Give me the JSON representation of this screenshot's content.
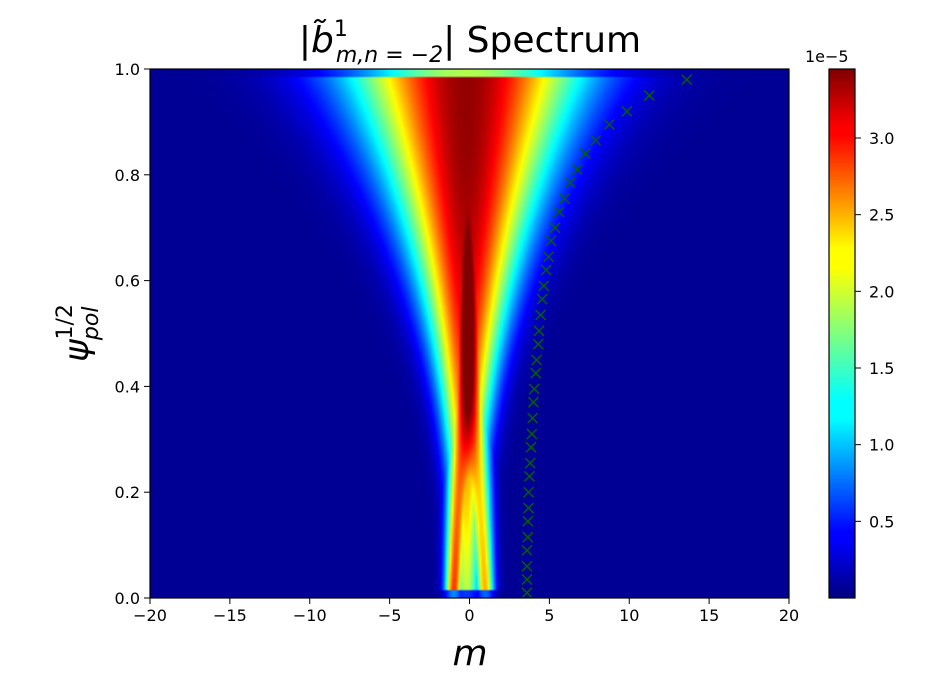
{
  "chart_data": {
    "type": "heatmap",
    "title": {
      "prefix": "|",
      "base": "b̃",
      "superscript": "1",
      "subscript": "m,n = −2",
      "suffix": "| Spectrum"
    },
    "xlabel": "m",
    "ylabel": {
      "base": "ψ",
      "superscript": "1/2",
      "subscript": "pol"
    },
    "xlim": [
      -20,
      20
    ],
    "ylim": [
      0.0,
      1.0
    ],
    "x_ticks": [
      -20,
      -15,
      -10,
      -5,
      0,
      5,
      10,
      15,
      20
    ],
    "x_tick_labels": [
      "−20",
      "−15",
      "−10",
      "−5",
      "0",
      "5",
      "10",
      "15",
      "20"
    ],
    "y_ticks": [
      0.0,
      0.2,
      0.4,
      0.6,
      0.8,
      1.0
    ],
    "y_tick_labels": [
      "0.0",
      "0.2",
      "0.4",
      "0.6",
      "0.8",
      "1.0"
    ],
    "colormap": "jet",
    "colorbar": {
      "min": 0.0,
      "max": 3.45e-05,
      "ticks": [
        5e-06,
        1e-05,
        1.5e-05,
        2e-05,
        2.5e-05,
        3e-05
      ],
      "tick_labels": [
        "0.5",
        "1.0",
        "1.5",
        "2.0",
        "2.5",
        "3.0"
      ],
      "offset_label": "1e−5"
    },
    "heatmap_features": {
      "peaks": [
        {
          "m": -1.0,
          "psi": 0.05,
          "value": 3.2e-05
        },
        {
          "m": 1.0,
          "psi": 0.05,
          "value": 2.5e-05
        },
        {
          "m": -0.5,
          "psi": 0.9,
          "value": 3.45e-05
        }
      ]
    },
    "series": [
      {
        "name": "",
        "marker": "x",
        "color": "#006400",
        "points": [
          [
            3.6,
            0.01
          ],
          [
            3.6,
            0.035
          ],
          [
            3.6,
            0.06
          ],
          [
            3.6,
            0.09
          ],
          [
            3.65,
            0.115
          ],
          [
            3.65,
            0.145
          ],
          [
            3.7,
            0.17
          ],
          [
            3.7,
            0.2
          ],
          [
            3.75,
            0.23
          ],
          [
            3.8,
            0.255
          ],
          [
            3.85,
            0.285
          ],
          [
            3.9,
            0.31
          ],
          [
            3.95,
            0.34
          ],
          [
            4.0,
            0.37
          ],
          [
            4.05,
            0.395
          ],
          [
            4.15,
            0.425
          ],
          [
            4.2,
            0.45
          ],
          [
            4.3,
            0.48
          ],
          [
            4.35,
            0.505
          ],
          [
            4.45,
            0.535
          ],
          [
            4.55,
            0.565
          ],
          [
            4.65,
            0.59
          ],
          [
            4.8,
            0.62
          ],
          [
            4.95,
            0.645
          ],
          [
            5.1,
            0.675
          ],
          [
            5.35,
            0.7
          ],
          [
            5.6,
            0.73
          ],
          [
            5.95,
            0.755
          ],
          [
            6.3,
            0.785
          ],
          [
            6.75,
            0.81
          ],
          [
            7.25,
            0.84
          ],
          [
            7.9,
            0.865
          ],
          [
            8.75,
            0.895
          ],
          [
            9.85,
            0.92
          ],
          [
            11.25,
            0.95
          ],
          [
            13.6,
            0.98
          ]
        ]
      }
    ]
  }
}
